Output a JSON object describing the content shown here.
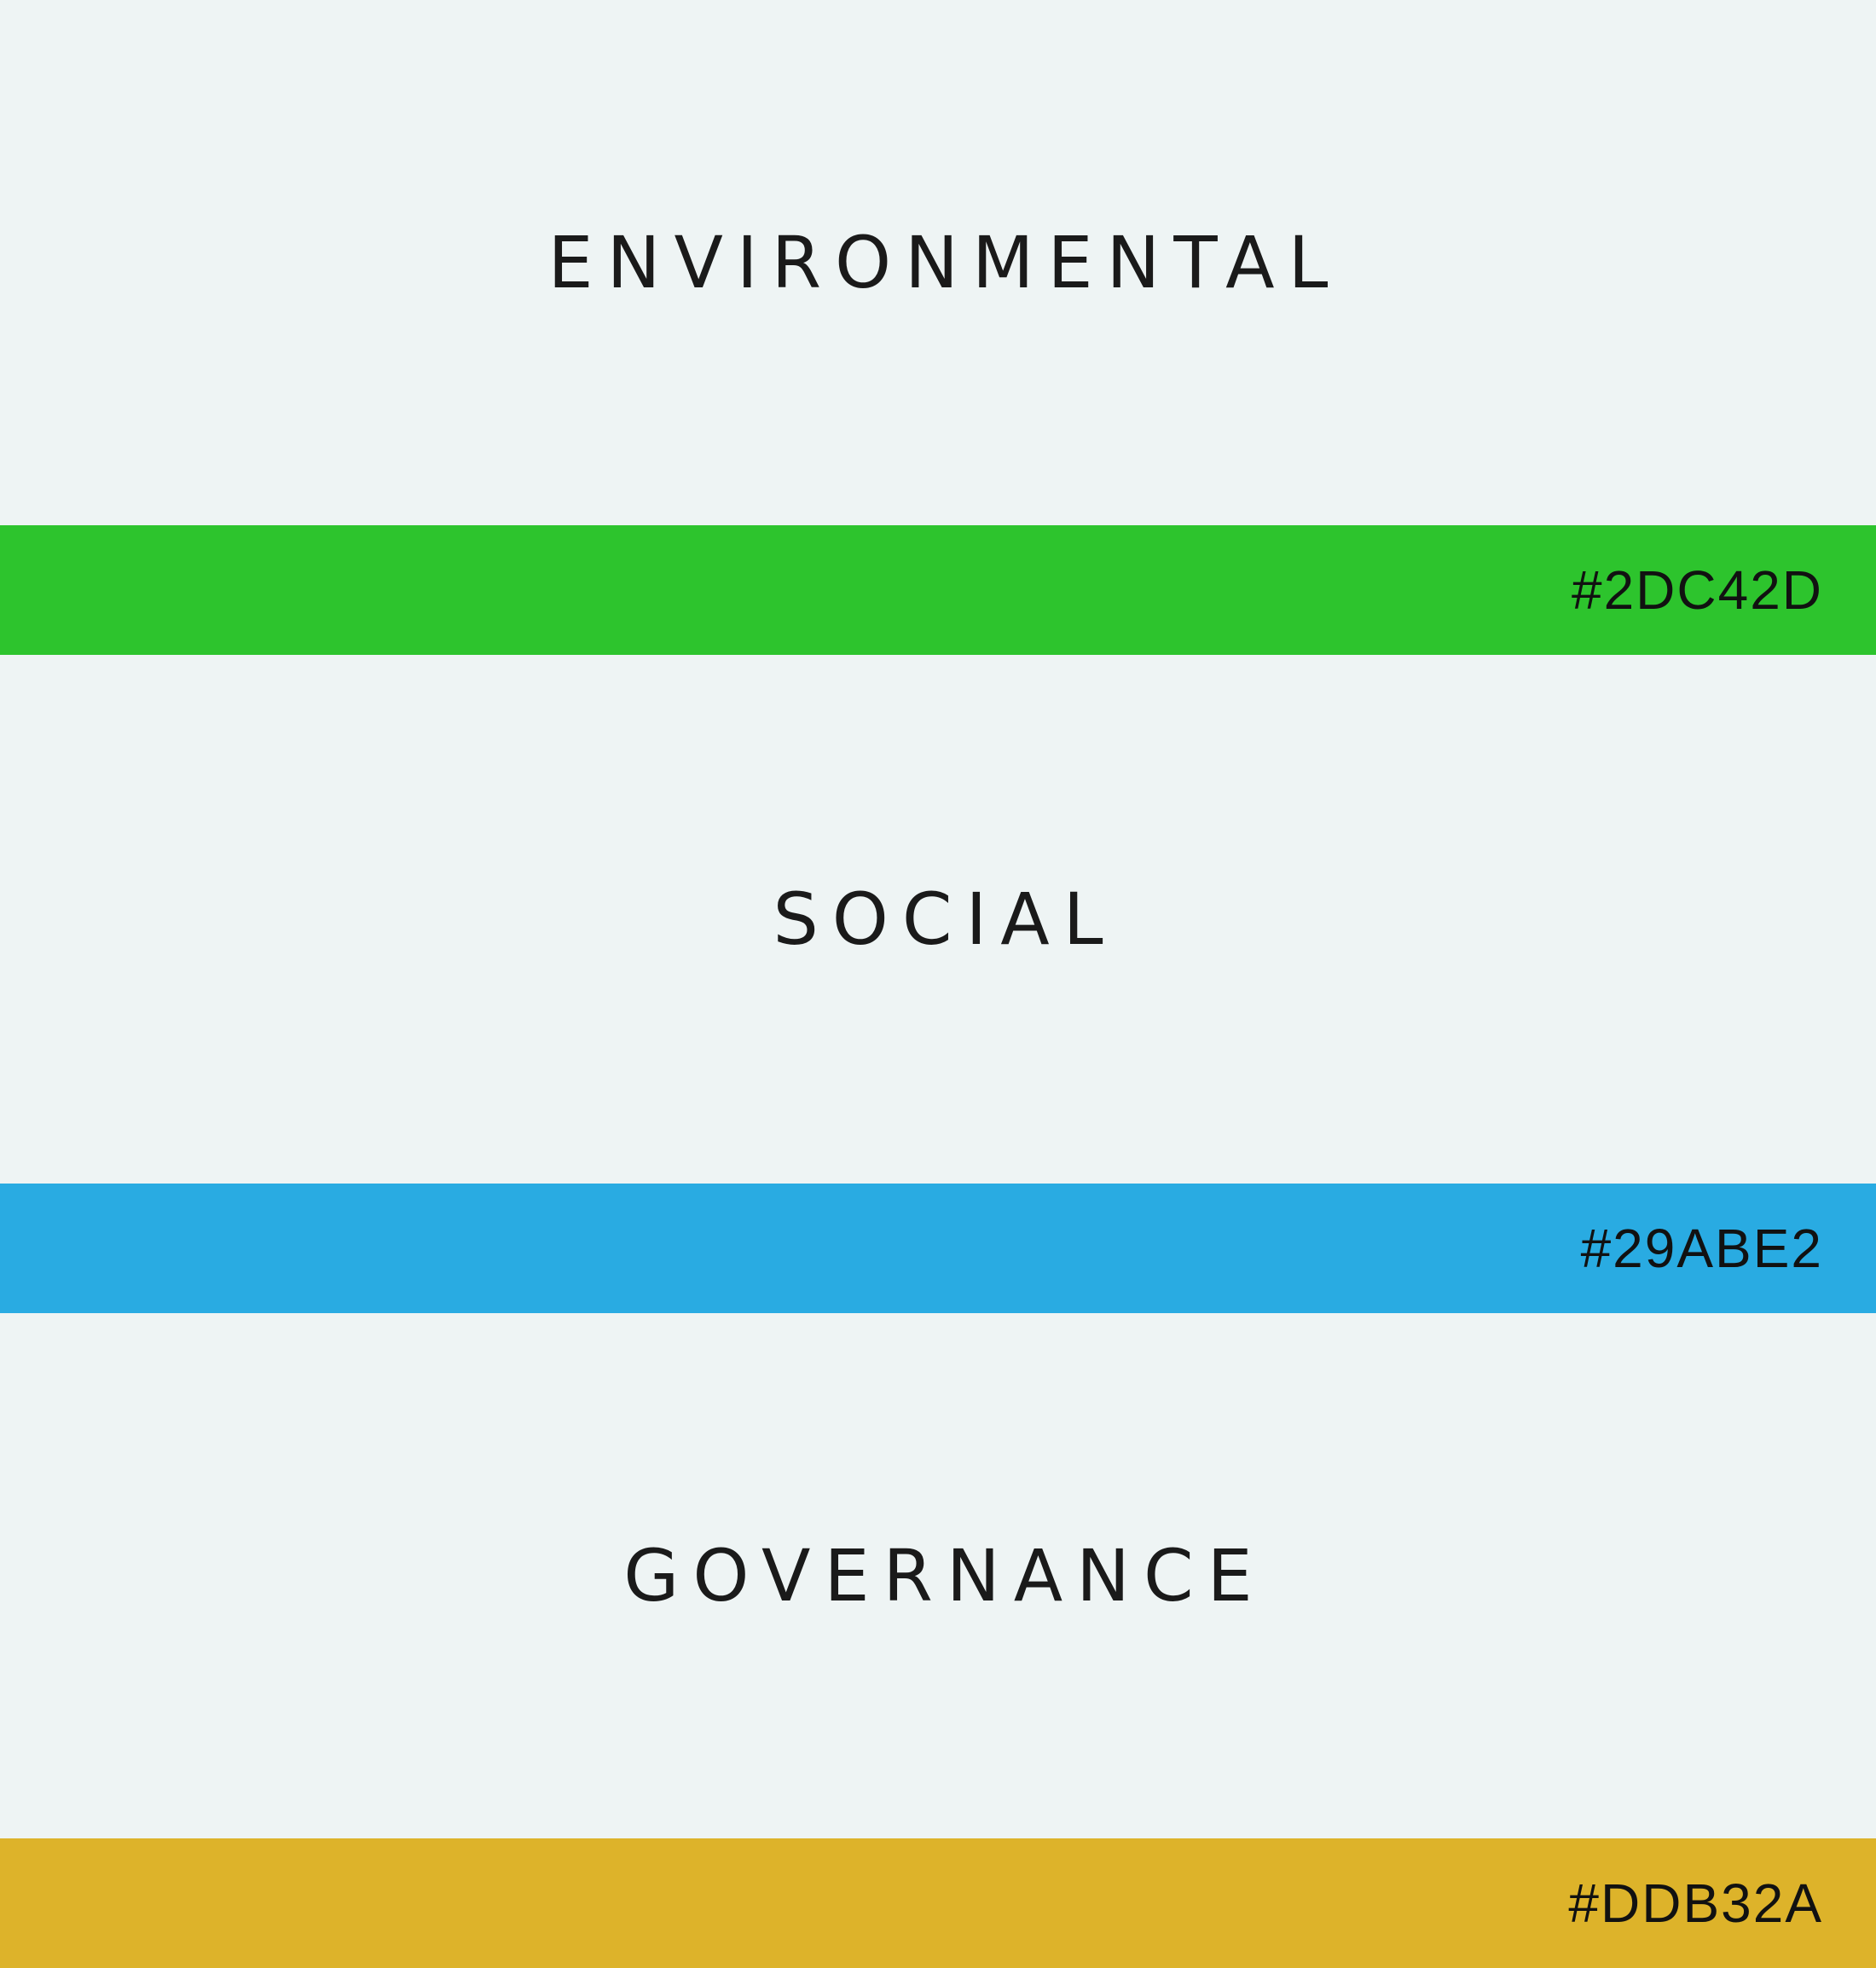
{
  "swatches": [
    {
      "label": "ENVIRONMENTAL",
      "hex_text": "#2DC42D",
      "color": "#2DC42D"
    },
    {
      "label": "SOCIAL",
      "hex_text": "#29ABE2",
      "color": "#29ABE2"
    },
    {
      "label": "GOVERNANCE",
      "hex_text": "#DDB32A",
      "color": "#DDB32A"
    }
  ],
  "background_color": "#EEF4F4"
}
